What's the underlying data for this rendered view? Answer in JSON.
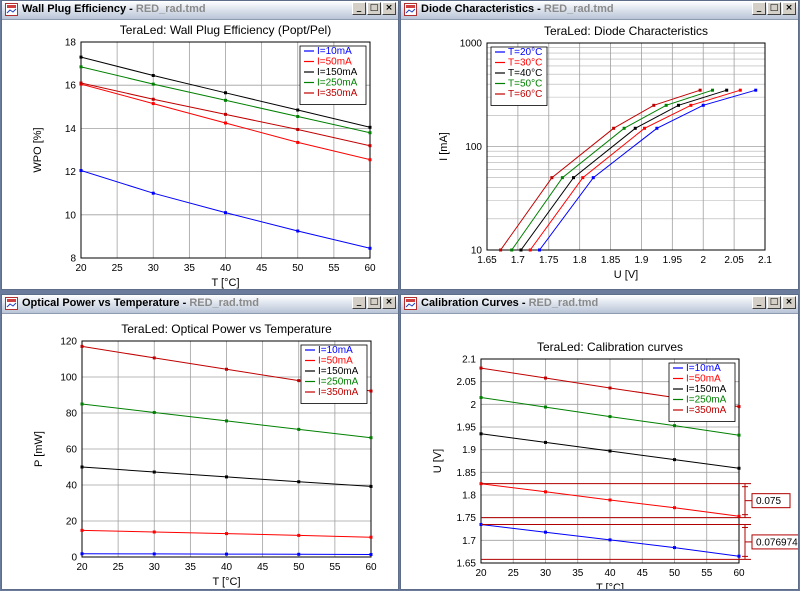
{
  "windows": [
    {
      "key": "wpe",
      "title": "Wall Plug Efficiency",
      "doc": "RED_rad.tmd",
      "chart_data": {
        "type": "line",
        "title": "TeraLed: Wall Plug Efficiency (Popt/Pel)",
        "xlabel": "T [°C]",
        "ylabel": "WPO [%]",
        "xlim": [
          20,
          60
        ],
        "ylim": [
          8,
          18
        ],
        "xticks": [
          20,
          25,
          30,
          35,
          40,
          45,
          50,
          55,
          60
        ],
        "yticks": [
          8,
          10,
          12,
          14,
          16,
          18
        ],
        "log_y": false,
        "grid": true,
        "legend_position": "top-right",
        "series": [
          {
            "name": "I=10mA",
            "color": "#0000ff",
            "x": [
              20,
              30,
              40,
              50,
              60
            ],
            "y": [
              12.05,
              11.0,
              10.1,
              9.25,
              8.45
            ]
          },
          {
            "name": "I=50mA",
            "color": "#ff0000",
            "x": [
              20,
              30,
              40,
              50,
              60
            ],
            "y": [
              16.05,
              15.15,
              14.25,
              13.35,
              12.55
            ]
          },
          {
            "name": "I=150mA",
            "color": "#000000",
            "x": [
              20,
              30,
              40,
              50,
              60
            ],
            "y": [
              17.3,
              16.45,
              15.65,
              14.85,
              14.05
            ]
          },
          {
            "name": "I=250mA",
            "color": "#008000",
            "x": [
              20,
              30,
              40,
              50,
              60
            ],
            "y": [
              16.85,
              16.05,
              15.3,
              14.55,
              13.8
            ]
          },
          {
            "name": "I=350mA",
            "color": "#c00000",
            "x": [
              20,
              30,
              40,
              50,
              60
            ],
            "y": [
              16.1,
              15.35,
              14.65,
              13.95,
              13.2
            ]
          }
        ]
      }
    },
    {
      "key": "diode",
      "title": "Diode Characteristics",
      "doc": "RED_rad.tmd",
      "chart_data": {
        "type": "line",
        "title": "TeraLed: Diode Characteristics",
        "xlabel": "U [V]",
        "ylabel": "I [mA]",
        "xlim": [
          1.65,
          2.1
        ],
        "ylim": [
          10,
          1000
        ],
        "xticks": [
          1.65,
          1.7,
          1.75,
          1.8,
          1.85,
          1.9,
          1.95,
          2,
          2.05,
          2.1
        ],
        "yticks": [
          10,
          100,
          1000
        ],
        "log_y": true,
        "grid": true,
        "legend_position": "top-left",
        "series": [
          {
            "name": "T=20°C",
            "color": "#0000ff",
            "x": [
              1.735,
              1.822,
              1.925,
              2.0,
              2.085
            ],
            "y": [
              10,
              50,
              150,
              250,
              350
            ]
          },
          {
            "name": "T=30°C",
            "color": "#ff0000",
            "x": [
              1.72,
              1.805,
              1.905,
              1.98,
              2.06
            ],
            "y": [
              10,
              50,
              150,
              250,
              350
            ]
          },
          {
            "name": "T=40°C",
            "color": "#000000",
            "x": [
              1.705,
              1.79,
              1.89,
              1.96,
              2.038
            ],
            "y": [
              10,
              50,
              150,
              250,
              350
            ]
          },
          {
            "name": "T=50°C",
            "color": "#008000",
            "x": [
              1.69,
              1.772,
              1.872,
              1.94,
              2.015
            ],
            "y": [
              10,
              50,
              150,
              250,
              350
            ]
          },
          {
            "name": "T=60°C",
            "color": "#c00000",
            "x": [
              1.672,
              1.755,
              1.855,
              1.92,
              1.995
            ],
            "y": [
              10,
              50,
              150,
              250,
              350
            ]
          }
        ]
      }
    },
    {
      "key": "optical",
      "title": "Optical Power vs Temperature",
      "doc": "RED_rad.tmd",
      "chart_data": {
        "type": "line",
        "title": "TeraLed: Optical Power vs Temperature",
        "xlabel": "T [°C]",
        "ylabel": "P [mW]",
        "xlim": [
          20,
          60
        ],
        "ylim": [
          0,
          120
        ],
        "xticks": [
          20,
          25,
          30,
          35,
          40,
          45,
          50,
          55,
          60
        ],
        "yticks": [
          0,
          20,
          40,
          60,
          80,
          100,
          120
        ],
        "log_y": false,
        "grid": true,
        "legend_position": "top-right",
        "series": [
          {
            "name": "I=10mA",
            "color": "#0000ff",
            "x": [
              20,
              30,
              40,
              50,
              60
            ],
            "y": [
              1.8,
              1.7,
              1.6,
              1.5,
              1.4
            ]
          },
          {
            "name": "I=50mA",
            "color": "#ff0000",
            "x": [
              20,
              30,
              40,
              50,
              60
            ],
            "y": [
              14.8,
              13.9,
              13.0,
              12.0,
              11.0
            ]
          },
          {
            "name": "I=150mA",
            "color": "#000000",
            "x": [
              20,
              30,
              40,
              50,
              60
            ],
            "y": [
              50,
              47.2,
              44.5,
              41.8,
              39.2
            ]
          },
          {
            "name": "I=250mA",
            "color": "#008000",
            "x": [
              20,
              30,
              40,
              50,
              60
            ],
            "y": [
              85,
              80.3,
              75.6,
              70.9,
              66.3
            ]
          },
          {
            "name": "I=350mA",
            "color": "#c00000",
            "x": [
              20,
              30,
              40,
              50,
              60
            ],
            "y": [
              117,
              110.6,
              104.3,
              98.0,
              92.2
            ]
          }
        ]
      }
    },
    {
      "key": "calib",
      "title": "Calibration Curves",
      "doc": "RED_rad.tmd",
      "chart_data": {
        "type": "line",
        "title": "TeraLed: Calibration curves",
        "xlabel": "T [°C]",
        "ylabel": "U [V]",
        "xlim": [
          20,
          60
        ],
        "ylim": [
          1.65,
          2.1
        ],
        "xticks": [
          20,
          25,
          30,
          35,
          40,
          45,
          50,
          55,
          60
        ],
        "yticks": [
          1.65,
          1.7,
          1.75,
          1.8,
          1.85,
          1.9,
          1.95,
          2,
          2.05,
          2.1
        ],
        "log_y": false,
        "grid": true,
        "legend_position": "top-right",
        "series": [
          {
            "name": "I=10mA",
            "color": "#0000ff",
            "x": [
              20,
              30,
              40,
              50,
              60
            ],
            "y": [
              1.735,
              1.718,
              1.701,
              1.684,
              1.665
            ]
          },
          {
            "name": "I=50mA",
            "color": "#ff0000",
            "x": [
              20,
              30,
              40,
              50,
              60
            ],
            "y": [
              1.825,
              1.807,
              1.789,
              1.772,
              1.753
            ]
          },
          {
            "name": "I=150mA",
            "color": "#000000",
            "x": [
              20,
              30,
              40,
              50,
              60
            ],
            "y": [
              1.935,
              1.916,
              1.897,
              1.878,
              1.859
            ]
          },
          {
            "name": "I=250mA",
            "color": "#008000",
            "x": [
              20,
              30,
              40,
              50,
              60
            ],
            "y": [
              2.015,
              1.994,
              1.973,
              1.953,
              1.932
            ]
          },
          {
            "name": "I=350mA",
            "color": "#c00000",
            "x": [
              20,
              30,
              40,
              50,
              60
            ],
            "y": [
              2.08,
              2.058,
              2.036,
              2.015,
              1.995
            ]
          }
        ],
        "annotations": [
          {
            "label": "0.075",
            "y_low": 1.75,
            "y_high": 1.825
          },
          {
            "label": "0.076974",
            "y_low": 1.658,
            "y_high": 1.735
          }
        ]
      }
    }
  ]
}
